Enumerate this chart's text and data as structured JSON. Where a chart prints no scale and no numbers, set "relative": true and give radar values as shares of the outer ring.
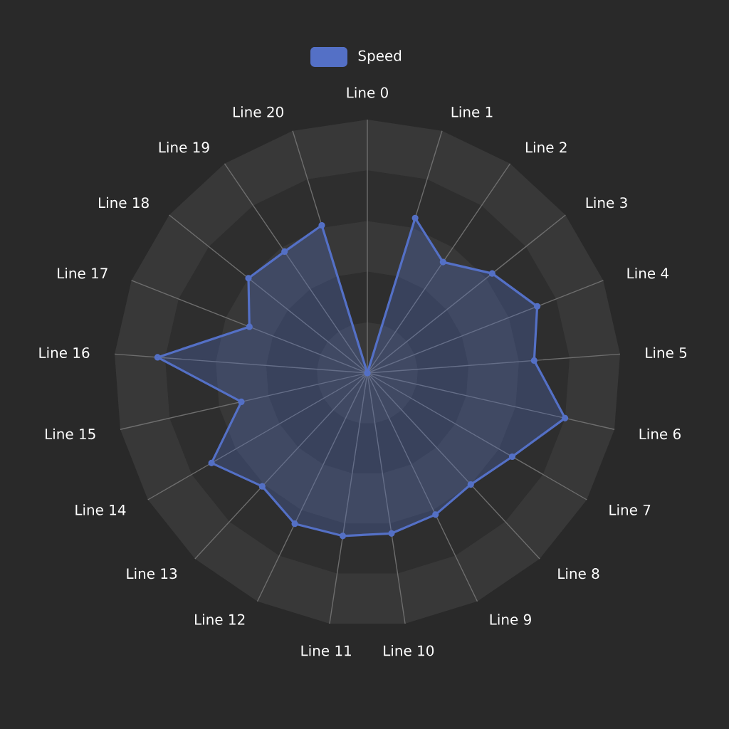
{
  "chart_data": {
    "type": "radar",
    "relative": true,
    "legend": "top",
    "marker": "circle",
    "categories": [
      "Line 0",
      "Line 1",
      "Line 2",
      "Line 3",
      "Line 4",
      "Line 5",
      "Line 6",
      "Line 7",
      "Line 8",
      "Line 9",
      "Line 10",
      "Line 11",
      "Line 12",
      "Line 13",
      "Line 14",
      "Line 15",
      "Line 16",
      "Line 17",
      "Line 18",
      "Line 19",
      "Line 20"
    ],
    "series": [
      {
        "name": "Speed",
        "color": "#5470c6",
        "values": [
          0,
          0.64,
          0.53,
          0.63,
          0.72,
          0.66,
          0.8,
          0.66,
          0.6,
          0.62,
          0.64,
          0.65,
          0.66,
          0.61,
          0.71,
          0.51,
          0.83,
          0.5,
          0.6,
          0.58,
          0.61
        ]
      }
    ]
  }
}
